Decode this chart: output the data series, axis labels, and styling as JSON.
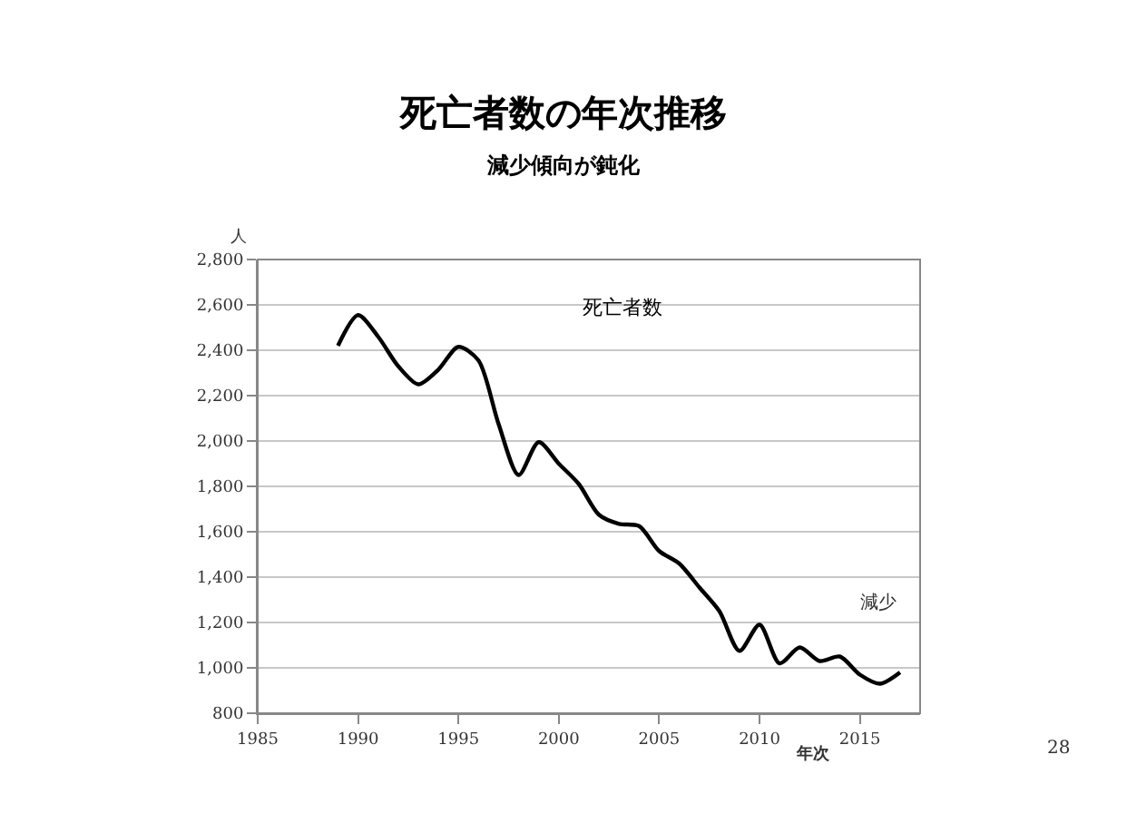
{
  "chart_data": {
    "type": "line",
    "title": "死亡者数の年次推移",
    "subtitle": "減少傾向が鈍化",
    "xlabel": "年次",
    "ylabel": "人",
    "x": [
      1989,
      1990,
      1991,
      1992,
      1993,
      1994,
      1995,
      1996,
      1997,
      1998,
      1999,
      2000,
      2001,
      2002,
      2003,
      2004,
      2005,
      2006,
      2007,
      2008,
      2009,
      2010,
      2011,
      2012,
      2013,
      2014,
      2015,
      2016,
      2017
    ],
    "series": [
      {
        "name": "死亡者数",
        "color": "#000000",
        "values": [
          2420,
          2555,
          2460,
          2330,
          2250,
          2315,
          2415,
          2355,
          2075,
          1850,
          1995,
          1900,
          1810,
          1675,
          1635,
          1625,
          1515,
          1460,
          1355,
          1250,
          1075,
          1190,
          1020,
          1090,
          1030,
          1050,
          970,
          930,
          980
        ]
      }
    ],
    "xlim": [
      1985,
      2018
    ],
    "xticks": [
      1985,
      1990,
      1995,
      2000,
      2005,
      2010,
      2015
    ],
    "ylim": [
      800,
      2800
    ],
    "yticks": [
      {
        "value": 800,
        "label": "800"
      },
      {
        "value": 1000,
        "label": "1,000"
      },
      {
        "value": 1200,
        "label": "1,200"
      },
      {
        "value": 1400,
        "label": "1,400"
      },
      {
        "value": 1600,
        "label": "1,600"
      },
      {
        "value": 1800,
        "label": "1,800"
      },
      {
        "value": 2000,
        "label": "2,000"
      },
      {
        "value": 2200,
        "label": "2,200"
      },
      {
        "value": 2400,
        "label": "2,400"
      },
      {
        "value": 2600,
        "label": "2,600"
      },
      {
        "value": 2800,
        "label": "2,800"
      }
    ],
    "grid": "y",
    "legend": false,
    "marker": "none",
    "line_style": "solid",
    "annotations": [
      "減少",
      "28"
    ]
  }
}
